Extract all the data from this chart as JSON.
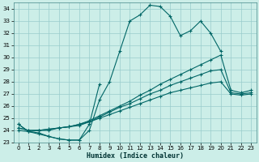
{
  "title": "",
  "xlabel": "Humidex (Indice chaleur)",
  "ylabel": "",
  "bg_color": "#cceee8",
  "grid_color": "#99cccc",
  "line_color": "#006666",
  "xlim": [
    -0.5,
    23.5
  ],
  "ylim": [
    23,
    34.5
  ],
  "yticks": [
    23,
    24,
    25,
    26,
    27,
    28,
    29,
    30,
    31,
    32,
    33,
    34
  ],
  "xticks": [
    0,
    1,
    2,
    3,
    4,
    5,
    6,
    7,
    8,
    9,
    10,
    11,
    12,
    13,
    14,
    15,
    16,
    17,
    18,
    19,
    20,
    21,
    22,
    23
  ],
  "series": [
    [
      24.5,
      23.9,
      23.8,
      23.5,
      23.3,
      23.2,
      23.2,
      24.0,
      26.5,
      28.0,
      30.5,
      33.0,
      33.5,
      34.3,
      34.2,
      33.4,
      31.8,
      32.2,
      33.0,
      32.0,
      30.5,
      null,
      null,
      null
    ],
    [
      24.5,
      23.9,
      23.7,
      23.5,
      23.3,
      23.2,
      23.2,
      24.5,
      27.8,
      null,
      null,
      null,
      null,
      null,
      null,
      null,
      null,
      null,
      null,
      null,
      null,
      null,
      null,
      null
    ],
    [
      24.2,
      24.0,
      24.0,
      24.1,
      24.2,
      24.3,
      24.5,
      24.8,
      25.2,
      25.6,
      26.0,
      26.4,
      26.9,
      27.3,
      27.8,
      28.2,
      28.6,
      29.0,
      29.4,
      29.8,
      30.2,
      27.3,
      27.1,
      27.3
    ],
    [
      24.2,
      24.0,
      24.0,
      24.1,
      24.2,
      24.3,
      24.5,
      24.7,
      25.1,
      25.5,
      25.9,
      26.2,
      26.6,
      27.0,
      27.3,
      27.7,
      28.0,
      28.3,
      28.6,
      28.9,
      29.0,
      27.1,
      27.0,
      27.1
    ],
    [
      24.0,
      23.9,
      24.0,
      24.0,
      24.2,
      24.3,
      24.4,
      24.7,
      25.0,
      25.3,
      25.6,
      25.9,
      26.2,
      26.5,
      26.8,
      27.1,
      27.3,
      27.5,
      27.7,
      27.9,
      28.0,
      27.0,
      26.9,
      27.0
    ]
  ]
}
